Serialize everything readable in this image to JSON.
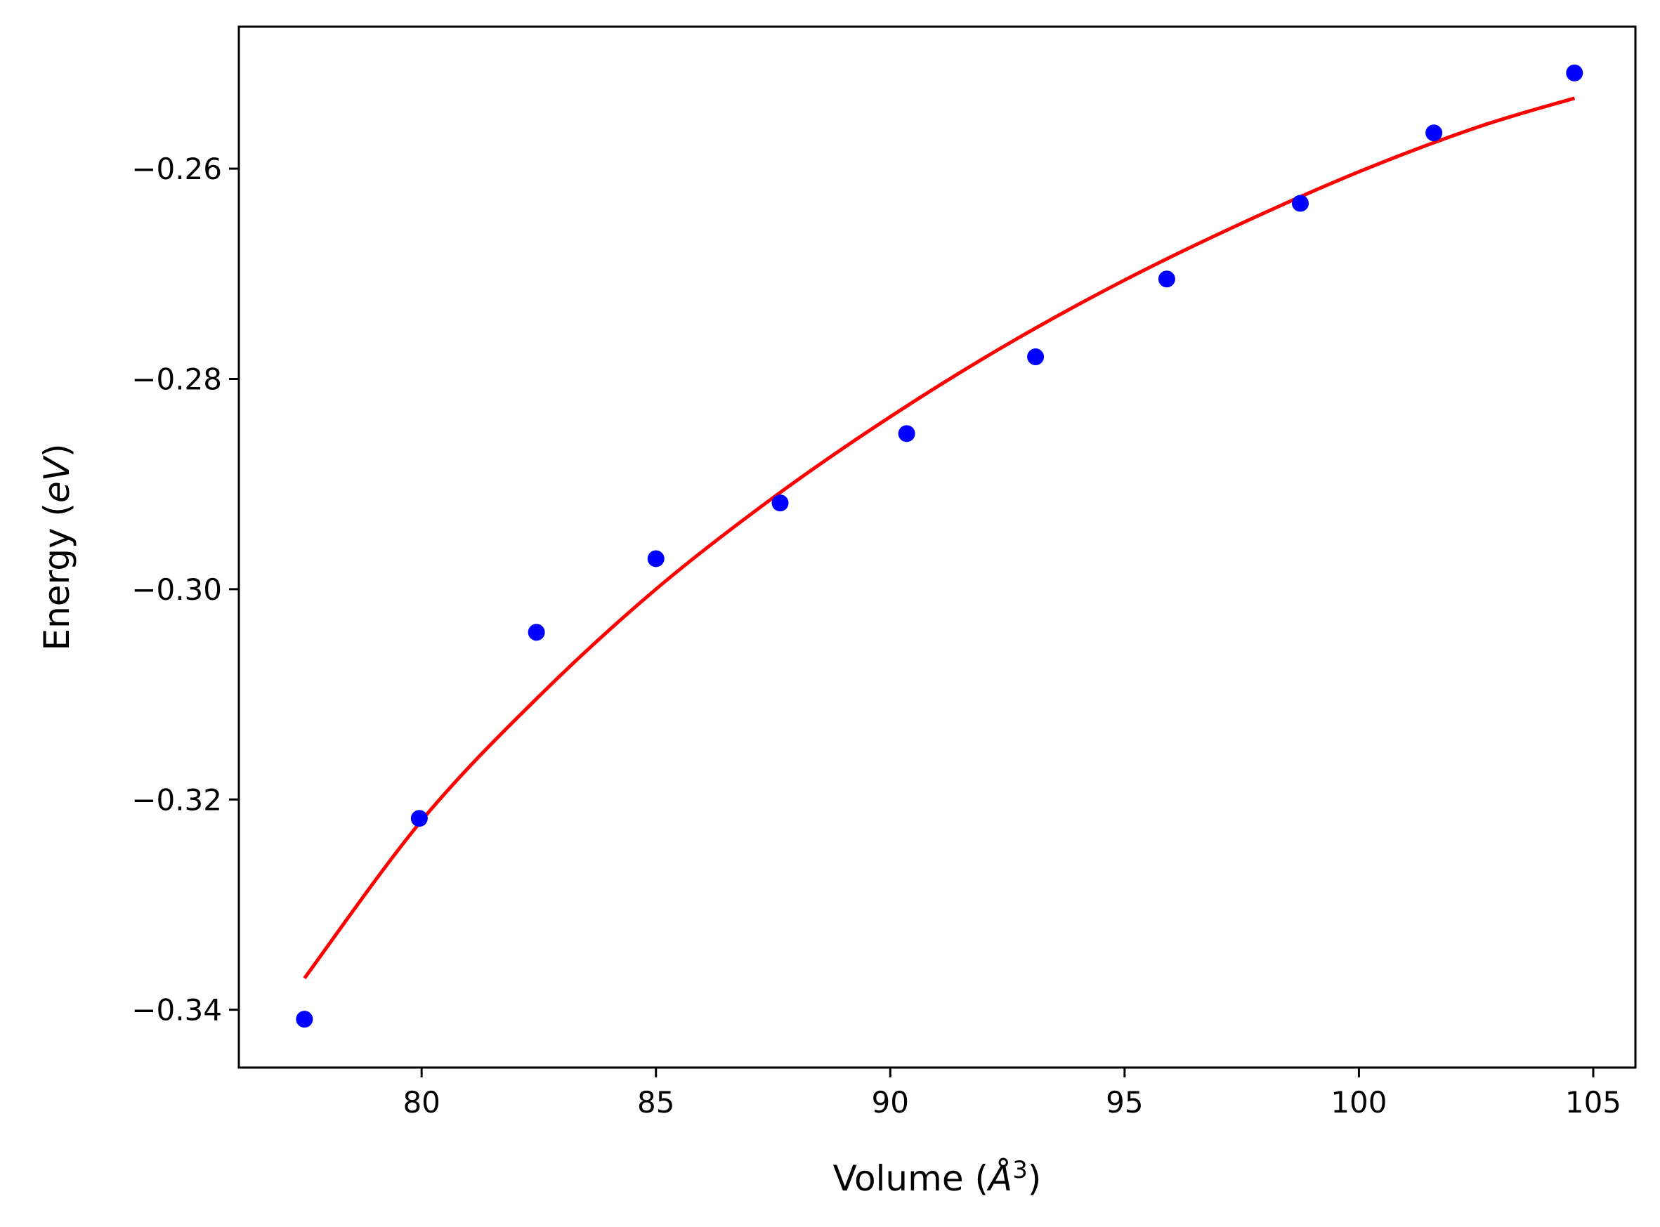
{
  "chart_data": {
    "type": "scatter",
    "title": "",
    "xlabel": "Volume (",
    "xlabel_symbol": "Å",
    "xlabel_exponent": "3",
    "xlabel_close": ")",
    "ylabel": "Energy (",
    "ylabel_symbol": "eV",
    "ylabel_close": ")",
    "xlim": [
      76.1,
      105.9
    ],
    "ylim": [
      -0.3455,
      -0.2465
    ],
    "xticks": [
      80,
      85,
      90,
      95,
      100,
      105
    ],
    "xtick_labels": [
      "80",
      "85",
      "90",
      "95",
      "100",
      "105"
    ],
    "yticks": [
      -0.34,
      -0.32,
      -0.3,
      -0.28,
      -0.26
    ],
    "ytick_labels": [
      "−0.34",
      "−0.32",
      "−0.30",
      "−0.28",
      "−0.26"
    ],
    "grid": false,
    "series": [
      {
        "kind": "scatter",
        "color": "#0000ff",
        "x": [
          77.5,
          79.95,
          82.45,
          85.0,
          87.65,
          90.35,
          93.1,
          95.9,
          98.75,
          101.6,
          104.6
        ],
        "y": [
          -0.3409,
          -0.3218,
          -0.3041,
          -0.2971,
          -0.2918,
          -0.2852,
          -0.2779,
          -0.2705,
          -0.2633,
          -0.2566,
          -0.2509
        ]
      },
      {
        "kind": "line",
        "color": "#ff0000",
        "x": [
          77.5,
          80.0,
          82.5,
          85.0,
          87.5,
          90.0,
          92.5,
          95.0,
          97.5,
          100.0,
          102.5,
          104.6
        ],
        "y": [
          -0.337,
          -0.322,
          -0.3102,
          -0.3,
          -0.2913,
          -0.2836,
          -0.2767,
          -0.2706,
          -0.2652,
          -0.2603,
          -0.2561,
          -0.2533
        ]
      }
    ]
  }
}
